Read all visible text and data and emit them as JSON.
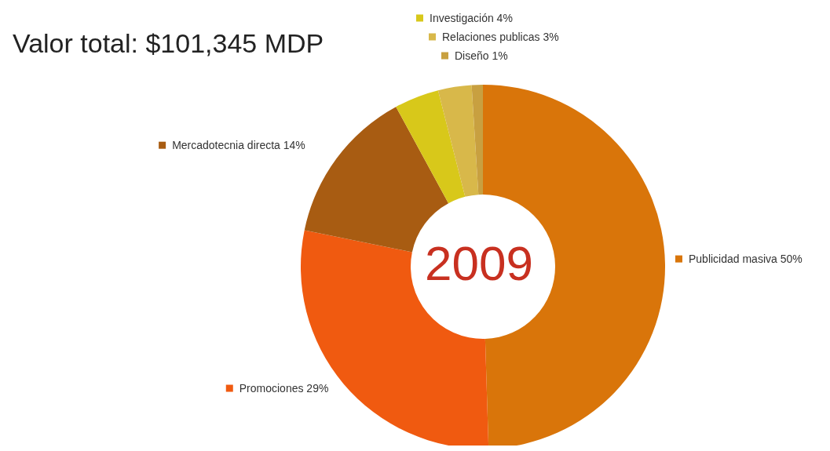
{
  "chart_data": {
    "type": "donut",
    "title": "Valor total: $101,345 MDP",
    "categories": [
      "Publicidad masiva",
      "Promociones",
      "Mercadotecnia directa",
      "Investigación",
      "Relaciones publicas",
      "Diseño"
    ],
    "values": [
      50,
      29,
      14,
      4,
      3,
      1
    ],
    "value_labels": [
      "50%",
      "29%",
      "14%",
      "4%",
      "3%",
      "1%"
    ],
    "colors": [
      "#d9750a",
      "#f05a10",
      "#a85c12",
      "#d8c81a",
      "#d8b84a",
      "#c8a040"
    ],
    "annotations": [
      "2009"
    ],
    "legend": "right"
  }
}
